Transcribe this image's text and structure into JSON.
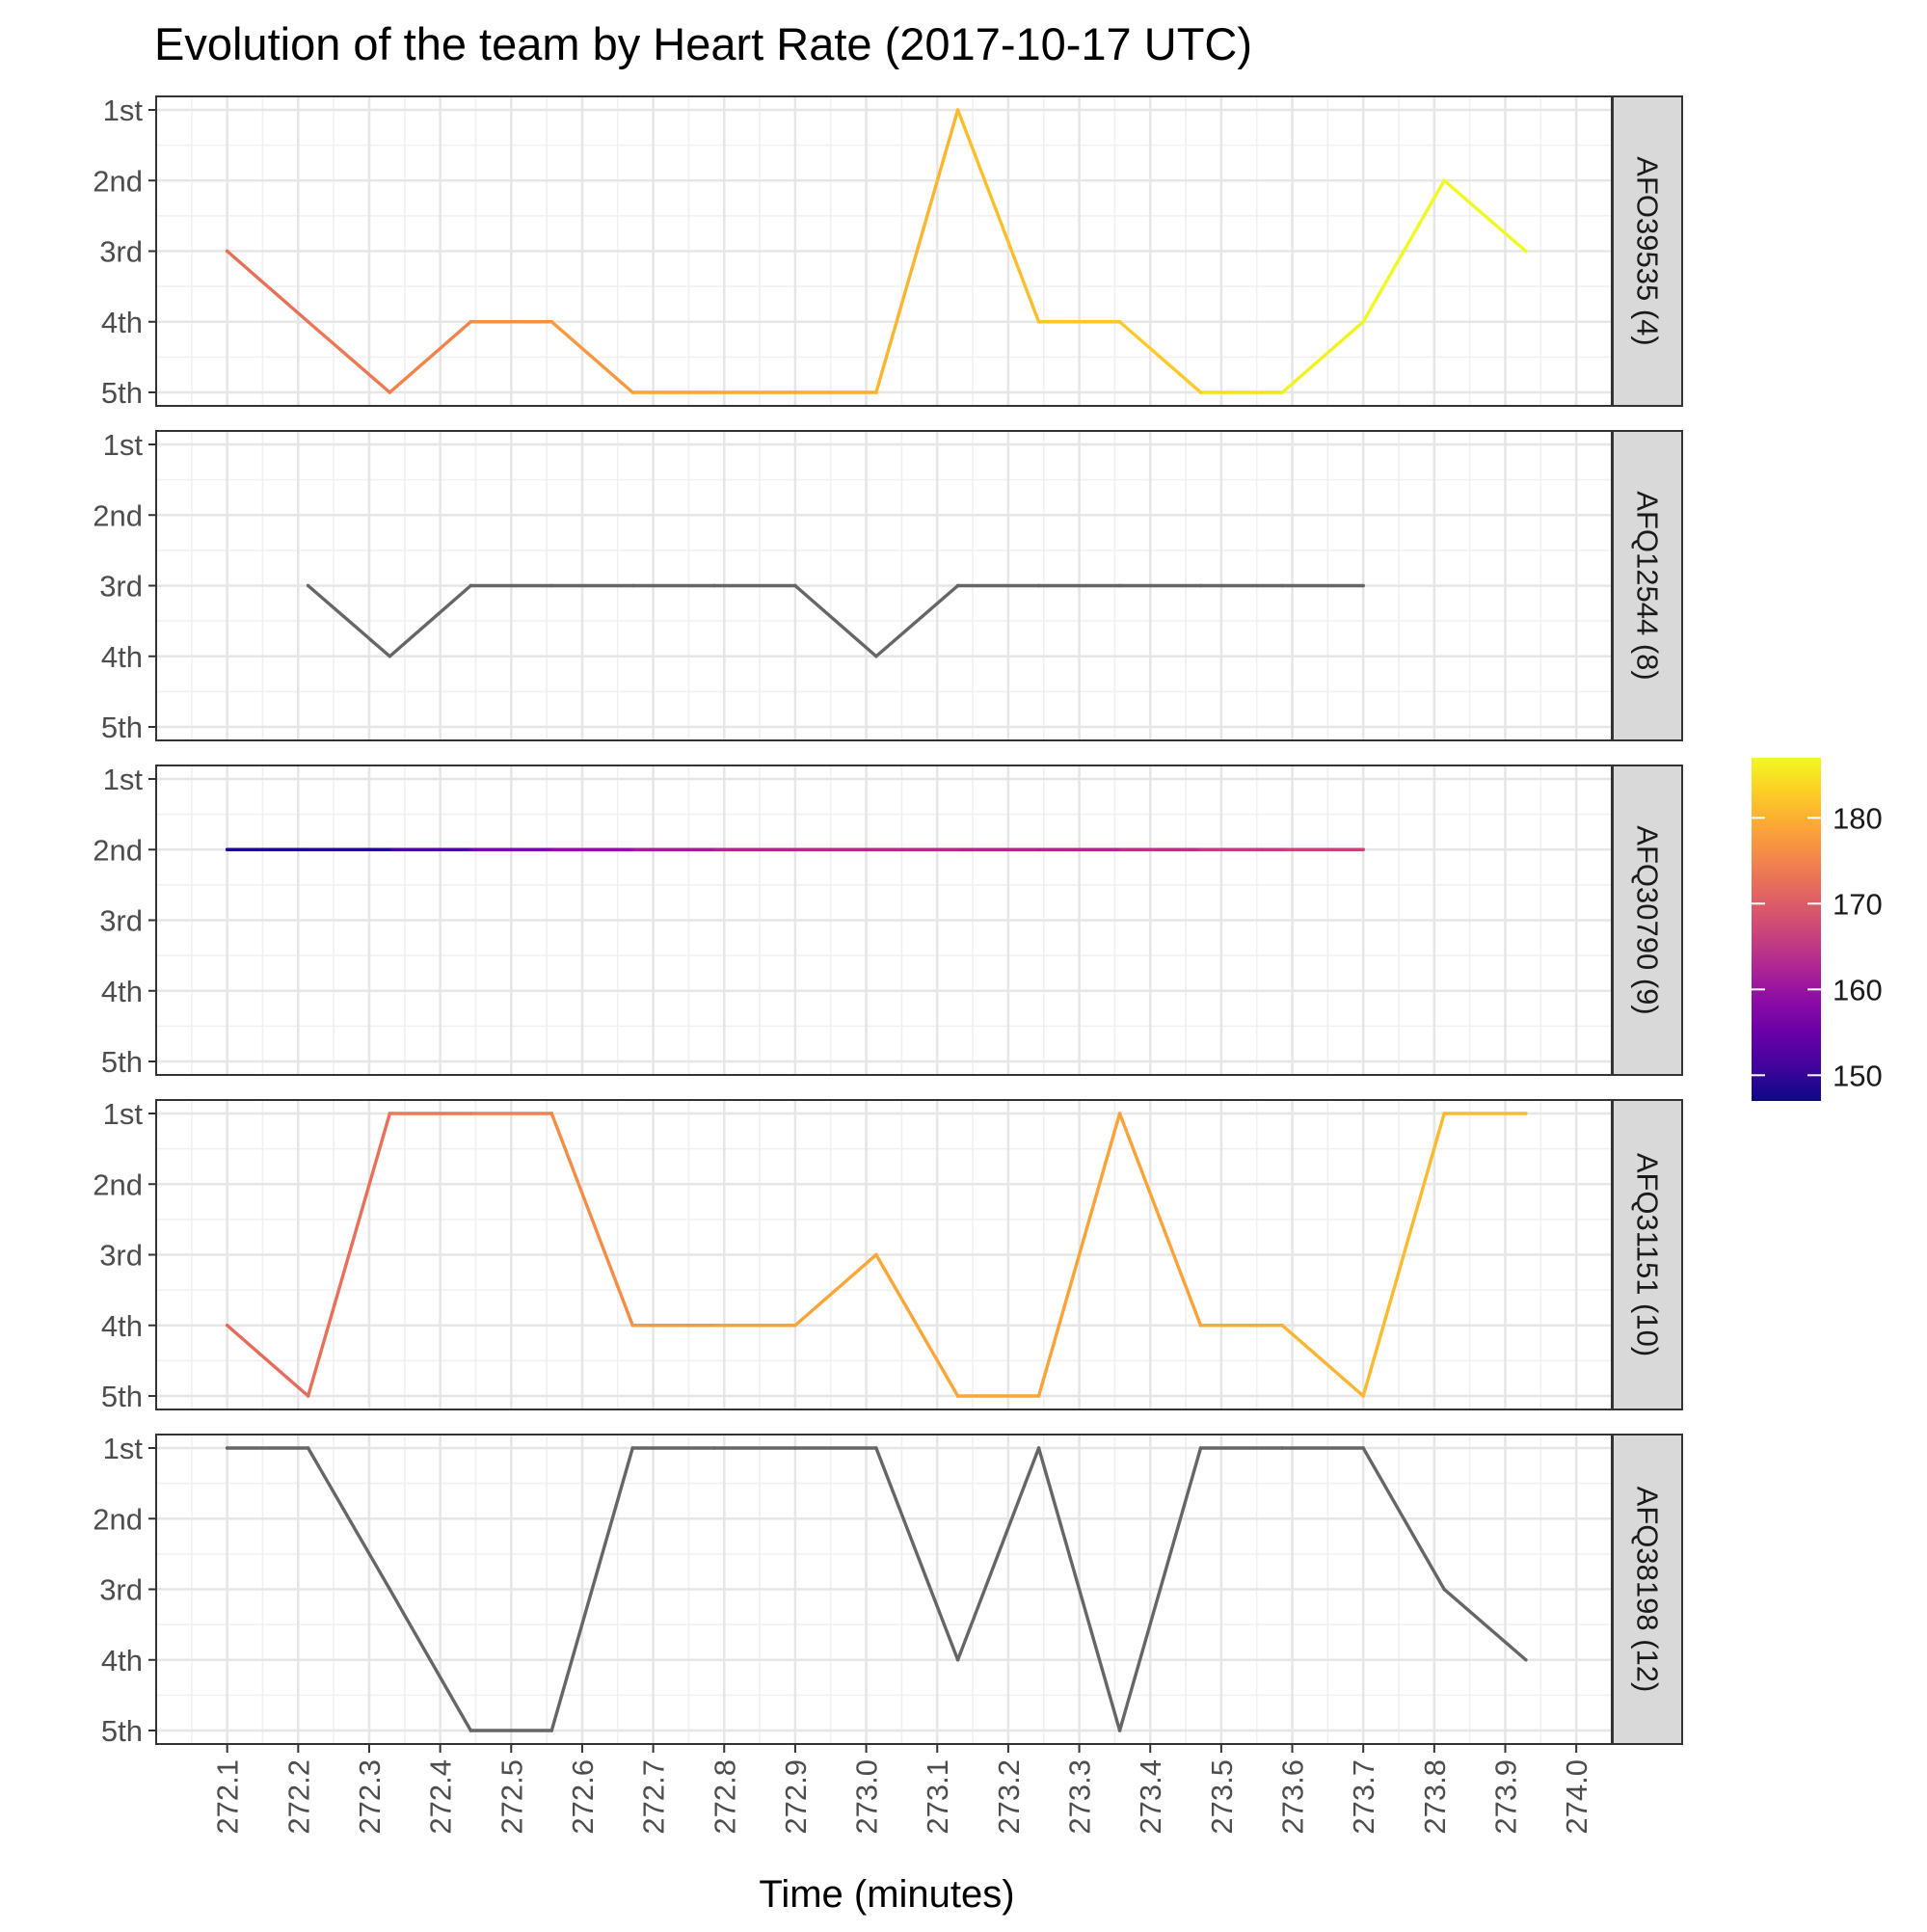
{
  "chart_data": {
    "type": "line",
    "title": "Evolution of the team by Heart Rate (2017-10-17 UTC)",
    "xlabel": "Time (minutes)",
    "ylabel": "",
    "x_ticks": [
      "272.1",
      "272.2",
      "272.3",
      "272.4",
      "272.5",
      "272.6",
      "272.7",
      "272.8",
      "272.9",
      "273.0",
      "273.1",
      "273.2",
      "273.3",
      "273.4",
      "273.5",
      "273.6",
      "273.7",
      "273.8",
      "273.9",
      "274.0"
    ],
    "xlim": [
      272.0,
      274.05
    ],
    "y_levels": [
      "1st",
      "2nd",
      "3rd",
      "4th",
      "5th"
    ],
    "grid": true,
    "legend": {
      "position": "right",
      "type": "colorbar",
      "ticks": [
        "150",
        "160",
        "170",
        "180"
      ],
      "range": [
        147,
        187
      ],
      "colors": [
        "#0d0887",
        "#41049d",
        "#6a00a8",
        "#8f0da4",
        "#b12a90",
        "#cc4778",
        "#e16462",
        "#f2844b",
        "#fca636",
        "#fcce25",
        "#f0f921"
      ]
    },
    "missing_color": "#666666",
    "panels": [
      {
        "label": "AFO39535 (4)",
        "series": [
          {
            "x": 272.1,
            "rank": 3,
            "hr": 172
          },
          {
            "x": 272.214,
            "rank": 4,
            "hr": 173
          },
          {
            "x": 272.329,
            "rank": 5,
            "hr": 174
          },
          {
            "x": 272.443,
            "rank": 4,
            "hr": 176
          },
          {
            "x": 272.557,
            "rank": 4,
            "hr": 177
          },
          {
            "x": 272.671,
            "rank": 5,
            "hr": 178
          },
          {
            "x": 272.786,
            "rank": 5,
            "hr": 179
          },
          {
            "x": 272.9,
            "rank": 5,
            "hr": 179
          },
          {
            "x": 273.014,
            "rank": 5,
            "hr": 180
          },
          {
            "x": 273.129,
            "rank": 1,
            "hr": 181
          },
          {
            "x": 273.243,
            "rank": 4,
            "hr": 182
          },
          {
            "x": 273.357,
            "rank": 4,
            "hr": 182
          },
          {
            "x": 273.471,
            "rank": 5,
            "hr": 183
          },
          {
            "x": 273.586,
            "rank": 5,
            "hr": 186
          },
          {
            "x": 273.7,
            "rank": 4,
            "hr": 187
          },
          {
            "x": 273.814,
            "rank": 2,
            "hr": 187
          },
          {
            "x": 273.929,
            "rank": 3,
            "hr": 187
          }
        ]
      },
      {
        "label": "AFQ12544 (8)",
        "series": [
          {
            "x": 272.214,
            "rank": 3,
            "hr": null
          },
          {
            "x": 272.329,
            "rank": 4,
            "hr": null
          },
          {
            "x": 272.443,
            "rank": 3,
            "hr": null
          },
          {
            "x": 272.557,
            "rank": 3,
            "hr": null
          },
          {
            "x": 272.671,
            "rank": 3,
            "hr": null
          },
          {
            "x": 272.786,
            "rank": 3,
            "hr": null
          },
          {
            "x": 272.9,
            "rank": 3,
            "hr": null
          },
          {
            "x": 273.014,
            "rank": 4,
            "hr": null
          },
          {
            "x": 273.129,
            "rank": 3,
            "hr": null
          },
          {
            "x": 273.243,
            "rank": 3,
            "hr": null
          },
          {
            "x": 273.357,
            "rank": 3,
            "hr": null
          },
          {
            "x": 273.471,
            "rank": 3,
            "hr": null
          },
          {
            "x": 273.586,
            "rank": 3,
            "hr": null
          },
          {
            "x": 273.7,
            "rank": 3,
            "hr": null
          }
        ]
      },
      {
        "label": "AFQ30790 (9)",
        "series": [
          {
            "x": 272.1,
            "rank": 2,
            "hr": 148
          },
          {
            "x": 272.214,
            "rank": 2,
            "hr": 148
          },
          {
            "x": 272.329,
            "rank": 2,
            "hr": 149
          },
          {
            "x": 272.443,
            "rank": 2,
            "hr": 155
          },
          {
            "x": 272.557,
            "rank": 2,
            "hr": 158
          },
          {
            "x": 272.671,
            "rank": 2,
            "hr": 160
          },
          {
            "x": 272.786,
            "rank": 2,
            "hr": 162
          },
          {
            "x": 272.9,
            "rank": 2,
            "hr": 163
          },
          {
            "x": 273.014,
            "rank": 2,
            "hr": 163
          },
          {
            "x": 273.129,
            "rank": 2,
            "hr": 163
          },
          {
            "x": 273.243,
            "rank": 2,
            "hr": 162
          },
          {
            "x": 273.357,
            "rank": 2,
            "hr": 163
          },
          {
            "x": 273.471,
            "rank": 2,
            "hr": 165
          },
          {
            "x": 273.586,
            "rank": 2,
            "hr": 166
          },
          {
            "x": 273.7,
            "rank": 2,
            "hr": 167
          }
        ]
      },
      {
        "label": "AFQ31151 (10)",
        "series": [
          {
            "x": 272.1,
            "rank": 4,
            "hr": 172
          },
          {
            "x": 272.214,
            "rank": 5,
            "hr": 172
          },
          {
            "x": 272.329,
            "rank": 1,
            "hr": 173
          },
          {
            "x": 272.443,
            "rank": 1,
            "hr": 174
          },
          {
            "x": 272.557,
            "rank": 1,
            "hr": 175
          },
          {
            "x": 272.671,
            "rank": 4,
            "hr": 177
          },
          {
            "x": 272.786,
            "rank": 4,
            "hr": 178
          },
          {
            "x": 272.9,
            "rank": 4,
            "hr": 179
          },
          {
            "x": 273.014,
            "rank": 3,
            "hr": 179
          },
          {
            "x": 273.129,
            "rank": 5,
            "hr": 179
          },
          {
            "x": 273.243,
            "rank": 5,
            "hr": 179
          },
          {
            "x": 273.357,
            "rank": 1,
            "hr": 178
          },
          {
            "x": 273.471,
            "rank": 4,
            "hr": 179
          },
          {
            "x": 273.586,
            "rank": 4,
            "hr": 180
          },
          {
            "x": 273.7,
            "rank": 5,
            "hr": 181
          },
          {
            "x": 273.814,
            "rank": 1,
            "hr": 181
          },
          {
            "x": 273.929,
            "rank": 1,
            "hr": 181
          }
        ]
      },
      {
        "label": "AFQ38198 (12)",
        "series": [
          {
            "x": 272.1,
            "rank": 1,
            "hr": null
          },
          {
            "x": 272.214,
            "rank": 1,
            "hr": null
          },
          {
            "x": 272.329,
            "rank": 3,
            "hr": null
          },
          {
            "x": 272.443,
            "rank": 5,
            "hr": null
          },
          {
            "x": 272.557,
            "rank": 5,
            "hr": null
          },
          {
            "x": 272.671,
            "rank": 1,
            "hr": null
          },
          {
            "x": 272.786,
            "rank": 1,
            "hr": null
          },
          {
            "x": 272.9,
            "rank": 1,
            "hr": null
          },
          {
            "x": 273.014,
            "rank": 1,
            "hr": null
          },
          {
            "x": 273.129,
            "rank": 4,
            "hr": null
          },
          {
            "x": 273.243,
            "rank": 1,
            "hr": null
          },
          {
            "x": 273.357,
            "rank": 5,
            "hr": null
          },
          {
            "x": 273.471,
            "rank": 1,
            "hr": null
          },
          {
            "x": 273.586,
            "rank": 1,
            "hr": null
          },
          {
            "x": 273.7,
            "rank": 1,
            "hr": null
          },
          {
            "x": 273.814,
            "rank": 3,
            "hr": null
          },
          {
            "x": 273.929,
            "rank": 4,
            "hr": null
          }
        ]
      }
    ]
  }
}
